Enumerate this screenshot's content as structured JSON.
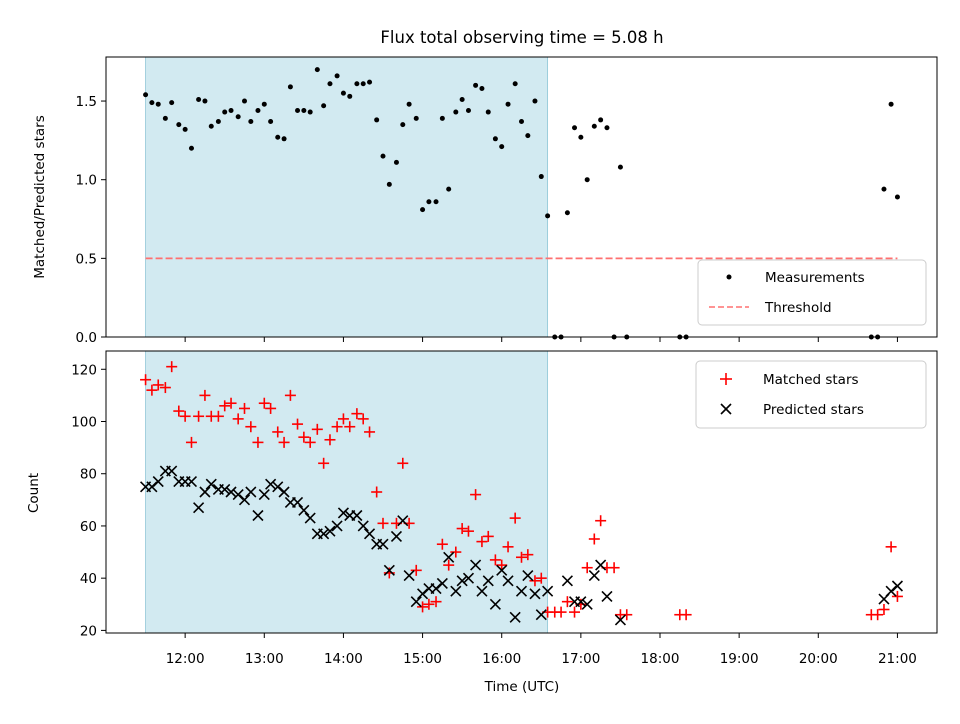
{
  "chart_data": [
    {
      "type": "scatter",
      "title": "Flux total observing time = 5.08 h",
      "ylabel": "Matched/Predicted stars",
      "xlim": [
        11.0,
        21.5
      ],
      "ylim": [
        0,
        1.78
      ],
      "yticks": [
        0.0,
        0.5,
        1.0,
        1.5
      ],
      "ytick_labels": [
        "0.0",
        "0.5",
        "1.0",
        "1.5"
      ],
      "shaded_span": [
        11.5,
        16.58
      ],
      "shade_color": "#add8e6",
      "threshold": {
        "name": "Threshold",
        "value": 0.5,
        "x": [
          11.5,
          21.0
        ],
        "color": "#ff7070"
      },
      "series": [
        {
          "name": "Measurements",
          "color": "#000000",
          "x": [
            11.5,
            11.58,
            11.66,
            11.75,
            11.83,
            11.92,
            12.0,
            12.08,
            12.17,
            12.25,
            12.33,
            12.42,
            12.5,
            12.58,
            12.67,
            12.75,
            12.83,
            12.92,
            13.0,
            13.08,
            13.17,
            13.25,
            13.33,
            13.42,
            13.5,
            13.58,
            13.67,
            13.75,
            13.83,
            13.92,
            14.0,
            14.08,
            14.17,
            14.25,
            14.33,
            14.42,
            14.5,
            14.58,
            14.67,
            14.75,
            14.83,
            14.92,
            15.0,
            15.08,
            15.17,
            15.25,
            15.33,
            15.42,
            15.5,
            15.58,
            15.67,
            15.75,
            15.83,
            15.92,
            16.0,
            16.08,
            16.17,
            16.25,
            16.33,
            16.42,
            16.5,
            16.58,
            16.67,
            16.75,
            16.83,
            16.92,
            17.0,
            17.08,
            17.17,
            17.25,
            17.33,
            17.42,
            17.5,
            17.58,
            18.25,
            18.33,
            20.67,
            20.75,
            20.83,
            20.92,
            21.0
          ],
          "y": [
            1.54,
            1.49,
            1.48,
            1.39,
            1.49,
            1.35,
            1.32,
            1.2,
            1.51,
            1.5,
            1.34,
            1.37,
            1.43,
            1.44,
            1.4,
            1.5,
            1.37,
            1.44,
            1.48,
            1.37,
            1.27,
            1.26,
            1.59,
            1.44,
            1.44,
            1.43,
            1.7,
            1.47,
            1.61,
            1.66,
            1.55,
            1.53,
            1.61,
            1.61,
            1.62,
            1.38,
            1.15,
            0.97,
            1.11,
            1.35,
            1.48,
            1.39,
            0.81,
            0.86,
            0.86,
            1.39,
            0.94,
            1.43,
            1.51,
            1.44,
            1.6,
            1.58,
            1.43,
            1.26,
            1.21,
            1.48,
            1.61,
            1.37,
            1.28,
            1.5,
            1.02,
            0.77,
            0.0,
            0.0,
            0.79,
            1.33,
            1.27,
            1.0,
            1.34,
            1.38,
            1.33,
            0.0,
            1.08,
            0.0,
            0.0,
            0.0,
            0.0,
            0.0,
            0.94,
            1.48,
            0.89
          ]
        }
      ],
      "legend": {
        "placement": "lower-right",
        "entries": [
          "Measurements",
          "Threshold"
        ]
      }
    },
    {
      "type": "scatter",
      "xlabel": "Time (UTC)",
      "ylabel": "Count",
      "xlim": [
        11.0,
        21.5
      ],
      "ylim": [
        19,
        127
      ],
      "xticks": [
        12,
        13,
        14,
        15,
        16,
        17,
        18,
        19,
        20,
        21
      ],
      "xtick_labels": [
        "12:00",
        "13:00",
        "14:00",
        "15:00",
        "16:00",
        "17:00",
        "18:00",
        "19:00",
        "20:00",
        "21:00"
      ],
      "yticks": [
        20,
        40,
        60,
        80,
        100,
        120
      ],
      "ytick_labels": [
        "20",
        "40",
        "60",
        "80",
        "100",
        "120"
      ],
      "shaded_span": [
        11.5,
        16.58
      ],
      "shade_color": "#add8e6",
      "series": [
        {
          "name": "Matched stars",
          "marker": "plus",
          "color": "#ff0000",
          "x": [
            11.5,
            11.58,
            11.66,
            11.75,
            11.83,
            11.92,
            12.0,
            12.08,
            12.17,
            12.25,
            12.33,
            12.42,
            12.5,
            12.58,
            12.67,
            12.75,
            12.83,
            12.92,
            13.0,
            13.08,
            13.17,
            13.25,
            13.33,
            13.42,
            13.5,
            13.58,
            13.67,
            13.75,
            13.83,
            13.92,
            14.0,
            14.08,
            14.17,
            14.25,
            14.33,
            14.42,
            14.5,
            14.58,
            14.67,
            14.75,
            14.83,
            14.92,
            15.0,
            15.08,
            15.17,
            15.25,
            15.33,
            15.42,
            15.5,
            15.58,
            15.67,
            15.75,
            15.83,
            15.92,
            16.0,
            16.08,
            16.17,
            16.25,
            16.33,
            16.42,
            16.5,
            16.58,
            16.67,
            16.75,
            16.83,
            16.92,
            17.0,
            17.08,
            17.17,
            17.25,
            17.33,
            17.42,
            17.5,
            17.58,
            18.25,
            18.33,
            20.67,
            20.75,
            20.83,
            20.92,
            21.0
          ],
          "y": [
            116,
            112,
            114,
            113,
            121,
            104,
            102,
            92,
            102,
            110,
            102,
            102,
            106,
            107,
            101,
            105,
            98,
            92,
            107,
            105,
            96,
            92,
            110,
            99,
            94,
            92,
            97,
            84,
            93,
            98,
            101,
            98,
            103,
            101,
            96,
            73,
            61,
            42,
            61,
            84,
            61,
            43,
            29,
            30,
            31,
            53,
            45,
            50,
            59,
            58,
            72,
            54,
            56,
            47,
            45,
            52,
            63,
            48,
            49,
            39,
            40,
            27,
            27,
            27,
            31,
            27,
            30,
            44,
            55,
            62,
            44,
            44,
            26,
            26,
            26,
            26,
            26,
            26,
            28,
            52,
            33
          ]
        },
        {
          "name": "Predicted stars",
          "marker": "x",
          "color": "#000000",
          "x": [
            11.5,
            11.58,
            11.66,
            11.75,
            11.83,
            11.92,
            12.0,
            12.08,
            12.17,
            12.25,
            12.33,
            12.42,
            12.5,
            12.58,
            12.67,
            12.75,
            12.83,
            12.92,
            13.0,
            13.08,
            13.17,
            13.25,
            13.33,
            13.42,
            13.5,
            13.58,
            13.67,
            13.75,
            13.83,
            13.92,
            14.0,
            14.08,
            14.17,
            14.25,
            14.33,
            14.42,
            14.5,
            14.58,
            14.67,
            14.75,
            14.83,
            14.92,
            15.0,
            15.08,
            15.17,
            15.25,
            15.33,
            15.42,
            15.5,
            15.58,
            15.67,
            15.75,
            15.83,
            15.92,
            16.0,
            16.08,
            16.17,
            16.25,
            16.33,
            16.42,
            16.5,
            16.58,
            16.83,
            16.92,
            17.0,
            17.08,
            17.17,
            17.25,
            17.33,
            17.5,
            20.83,
            20.92,
            21.0
          ],
          "y": [
            75,
            75,
            77,
            81,
            81,
            77,
            77,
            77,
            67,
            73,
            76,
            74,
            74,
            73,
            72,
            70,
            73,
            64,
            72,
            76,
            75,
            73,
            69,
            69,
            66,
            63,
            57,
            57,
            58,
            60,
            65,
            64,
            64,
            60,
            57,
            53,
            53,
            43,
            56,
            62,
            41,
            31,
            34,
            36,
            36,
            38,
            48,
            35,
            39,
            40,
            45,
            35,
            39,
            30,
            43,
            39,
            25,
            35,
            41,
            34,
            26,
            35,
            39,
            31,
            31,
            30,
            41,
            45,
            33,
            24,
            32,
            35,
            37
          ]
        }
      ],
      "legend": {
        "placement": "upper-right",
        "entries": [
          "Matched stars",
          "Predicted stars"
        ]
      }
    }
  ]
}
